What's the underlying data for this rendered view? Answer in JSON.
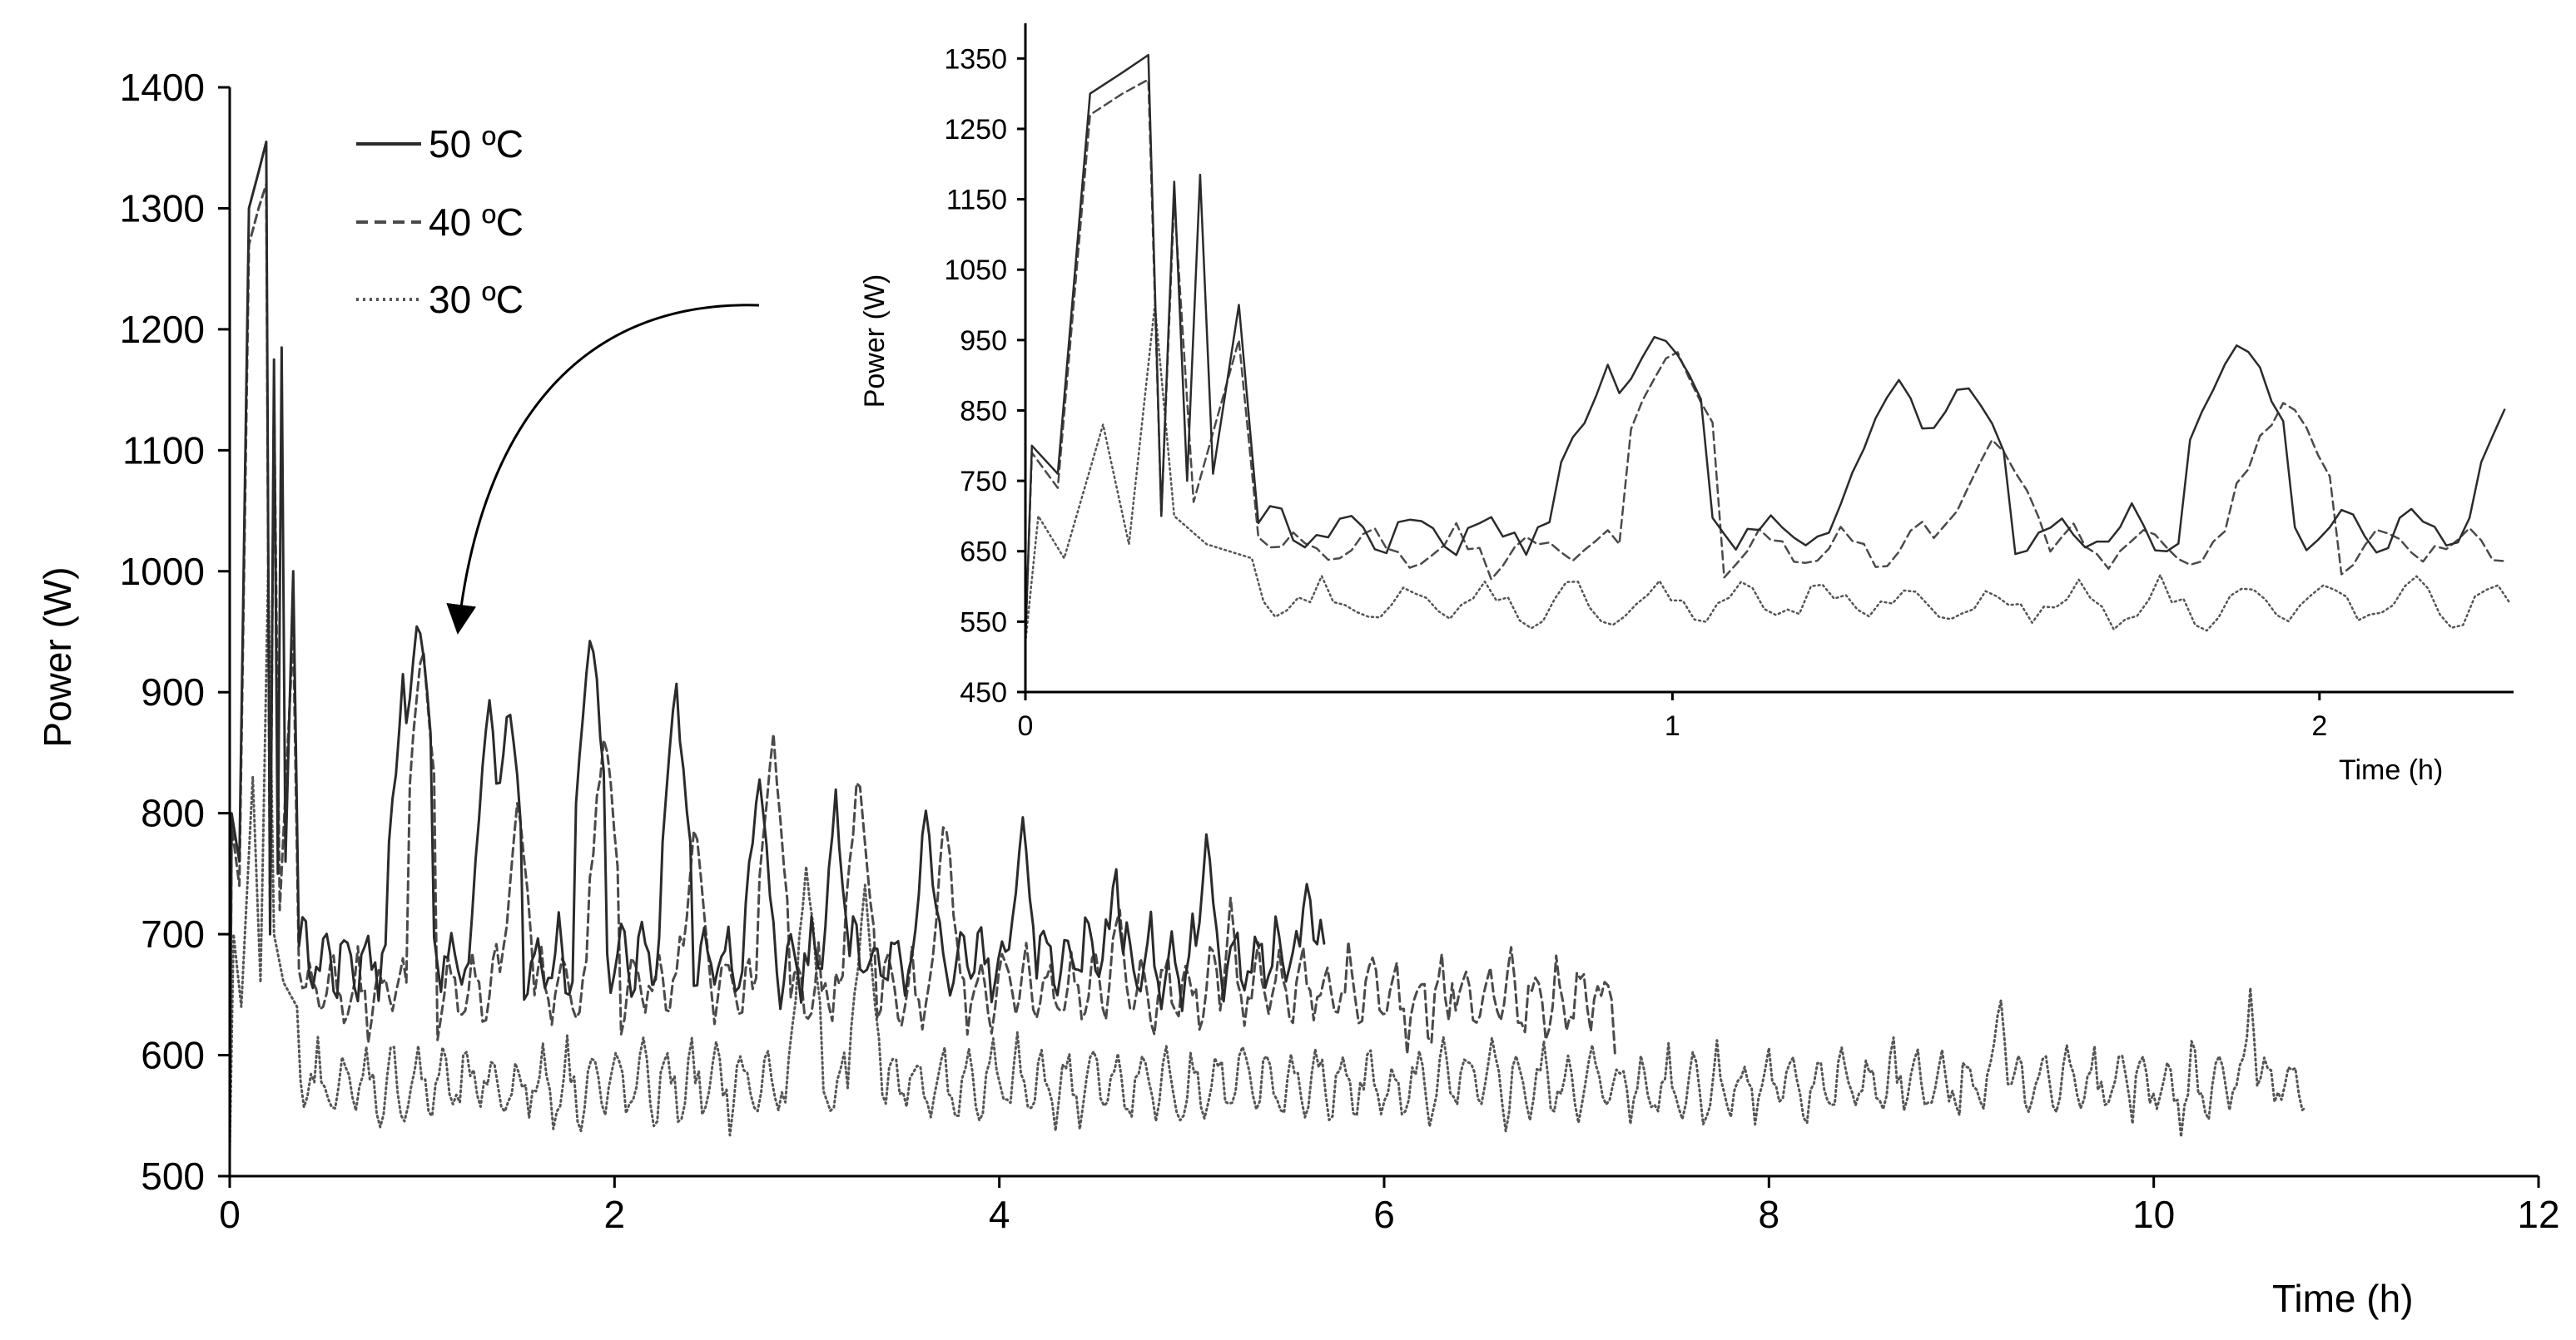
{
  "chart_data": [
    {
      "type": "line",
      "role": "main",
      "xlabel": "Time (h)",
      "ylabel": "Power (W)",
      "xlim": [
        0,
        12
      ],
      "ylim": [
        500,
        1400
      ],
      "xticks": [
        0,
        2,
        4,
        6,
        8,
        10,
        12
      ],
      "yticks": [
        500,
        600,
        700,
        800,
        900,
        1000,
        1100,
        1200,
        1300,
        1400
      ],
      "grid": false,
      "legend_position": "top-left",
      "series": [
        {
          "name": "50 ºC",
          "style": "solid",
          "color": "#2b2b2b",
          "end_time": 5.7,
          "baseline": 690,
          "startup": [
            [
              0,
              520
            ],
            [
              0.01,
              800
            ],
            [
              0.05,
              760
            ],
            [
              0.1,
              1300
            ],
            [
              0.15,
              1330
            ],
            [
              0.19,
              1355
            ],
            [
              0.21,
              700
            ],
            [
              0.23,
              1175
            ],
            [
              0.25,
              750
            ],
            [
              0.27,
              1185
            ],
            [
              0.29,
              760
            ],
            [
              0.33,
              1000
            ],
            [
              0.36,
              690
            ]
          ],
          "peaks": [
            [
              0.9,
              905
            ],
            [
              0.98,
              975
            ],
            [
              1.35,
              895
            ],
            [
              1.45,
              905
            ],
            [
              1.88,
              955
            ],
            [
              2.32,
              905
            ],
            [
              2.75,
              840
            ],
            [
              3.15,
              810
            ],
            [
              3.62,
              810
            ],
            [
              4.12,
              805
            ],
            [
              4.6,
              760
            ],
            [
              5.08,
              785
            ],
            [
              5.6,
              750
            ]
          ]
        },
        {
          "name": "40 ºC",
          "style": "dashed",
          "color": "#4a4a4a",
          "end_time": 7.2,
          "baseline": 665,
          "startup": [
            [
              0,
              520
            ],
            [
              0.01,
              790
            ],
            [
              0.05,
              740
            ],
            [
              0.1,
              1270
            ],
            [
              0.15,
              1300
            ],
            [
              0.19,
              1320
            ],
            [
              0.21,
              700
            ],
            [
              0.23,
              1150
            ],
            [
              0.26,
              720
            ],
            [
              0.33,
              950
            ],
            [
              0.36,
              670
            ]
          ],
          "peaks": [
            [
              1.0,
              940
            ],
            [
              1.5,
              820
            ],
            [
              1.95,
              880
            ],
            [
              2.42,
              800
            ],
            [
              2.82,
              870
            ],
            [
              3.27,
              840
            ],
            [
              3.72,
              800
            ],
            [
              4.62,
              740
            ],
            [
              5.2,
              730
            ],
            [
              6.35,
              660
            ],
            [
              6.55,
              685
            ],
            [
              7.1,
              665
            ]
          ]
        },
        {
          "name": "30 ºC",
          "style": "dotted",
          "color": "#555555",
          "end_time": 10.8,
          "baseline": 585,
          "startup": [
            [
              0,
              520
            ],
            [
              0.02,
              700
            ],
            [
              0.06,
              640
            ],
            [
              0.12,
              830
            ],
            [
              0.16,
              660
            ],
            [
              0.2,
              1000
            ],
            [
              0.23,
              700
            ],
            [
              0.28,
              660
            ],
            [
              0.35,
              640
            ]
          ],
          "peaks": [
            [
              3.0,
              760
            ],
            [
              3.3,
              740
            ],
            [
              9.2,
              650
            ],
            [
              10.5,
              650
            ]
          ]
        }
      ]
    },
    {
      "type": "line",
      "role": "inset",
      "xlabel": "Time (h)",
      "ylabel": "Power (W)",
      "xlim": [
        0,
        2.3
      ],
      "ylim": [
        450,
        1400
      ],
      "xticks": [
        0,
        1,
        2
      ],
      "yticks": [
        450,
        550,
        650,
        750,
        850,
        950,
        1050,
        1150,
        1250,
        1350
      ],
      "grid": false
    }
  ],
  "annotation": {
    "arrow": "curved arrow from the inset to the main plot"
  }
}
